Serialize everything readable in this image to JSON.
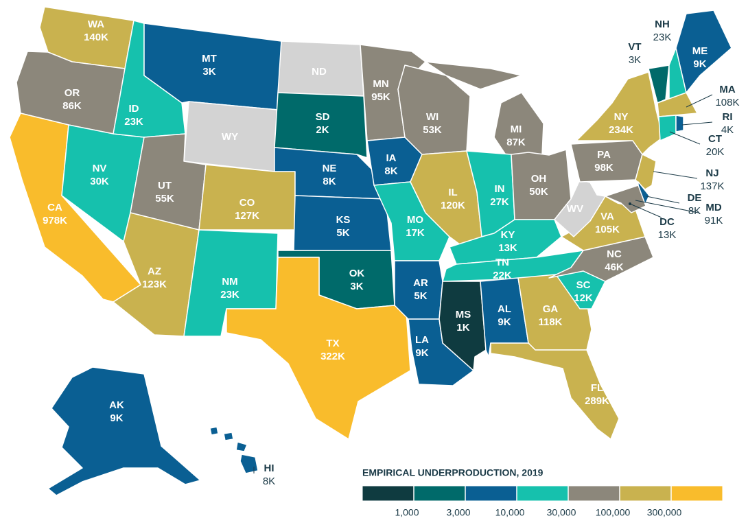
{
  "map": {
    "legend": {
      "title": "EMPIRICAL UNDERPRODUCTION, 2019",
      "colors": [
        "#0f3b40",
        "#006a6a",
        "#0a5f93",
        "#16c1ad",
        "#8c877b",
        "#c9b24f",
        "#f9bc2c"
      ],
      "ticks": [
        {
          "value": 1000,
          "label": "1,000"
        },
        {
          "value": 3000,
          "label": "3,000"
        },
        {
          "value": 10000,
          "label": "10,000"
        },
        {
          "value": 30000,
          "label": "30,000"
        },
        {
          "value": 100000,
          "label": "100,000"
        },
        {
          "value": 300000,
          "label": "300,000"
        }
      ]
    },
    "regions": [
      {
        "name": "WA",
        "value": 140000,
        "value_label": "140K",
        "color": "#c9b24f"
      },
      {
        "name": "OR",
        "value": 86000,
        "value_label": "86K",
        "color": "#8c877b"
      },
      {
        "name": "CA",
        "value": 978000,
        "value_label": "978K",
        "color": "#f9bc2c"
      },
      {
        "name": "NV",
        "value": 30000,
        "value_label": "30K",
        "color": "#16c1ad"
      },
      {
        "name": "ID",
        "value": 23000,
        "value_label": "23K",
        "color": "#16c1ad"
      },
      {
        "name": "MT",
        "value": 3000,
        "value_label": "3K",
        "color": "#0a5f93"
      },
      {
        "name": "WY",
        "color": "#d3d3d3"
      },
      {
        "name": "UT",
        "value": 55000,
        "value_label": "55K",
        "color": "#8c877b"
      },
      {
        "name": "CO",
        "value": 127000,
        "value_label": "127K",
        "color": "#c9b24f"
      },
      {
        "name": "AZ",
        "value": 123000,
        "value_label": "123K",
        "color": "#c9b24f"
      },
      {
        "name": "NM",
        "value": 23000,
        "value_label": "23K",
        "color": "#16c1ad"
      },
      {
        "name": "ND",
        "color": "#d3d3d3"
      },
      {
        "name": "SD",
        "value": 2000,
        "value_label": "2K",
        "color": "#006a6a"
      },
      {
        "name": "NE",
        "value": 8000,
        "value_label": "8K",
        "color": "#0a5f93"
      },
      {
        "name": "KS",
        "value": 5000,
        "value_label": "5K",
        "color": "#0a5f93"
      },
      {
        "name": "OK",
        "value": 3000,
        "value_label": "3K",
        "color": "#006a6a"
      },
      {
        "name": "TX",
        "value": 322000,
        "value_label": "322K",
        "color": "#f9bc2c"
      },
      {
        "name": "MN",
        "value": 95000,
        "value_label": "95K",
        "color": "#8c877b"
      },
      {
        "name": "IA",
        "value": 8000,
        "value_label": "8K",
        "color": "#0a5f93"
      },
      {
        "name": "MO",
        "value": 17000,
        "value_label": "17K",
        "color": "#16c1ad"
      },
      {
        "name": "AR",
        "value": 5000,
        "value_label": "5K",
        "color": "#0a5f93"
      },
      {
        "name": "LA",
        "value": 9000,
        "value_label": "9K",
        "color": "#0a5f93"
      },
      {
        "name": "WI",
        "value": 53000,
        "value_label": "53K",
        "color": "#8c877b"
      },
      {
        "name": "IL",
        "value": 120000,
        "value_label": "120K",
        "color": "#c9b24f"
      },
      {
        "name": "MI",
        "value": 87000,
        "value_label": "87K",
        "color": "#8c877b"
      },
      {
        "name": "IN",
        "value": 27000,
        "value_label": "27K",
        "color": "#16c1ad"
      },
      {
        "name": "OH",
        "value": 50000,
        "value_label": "50K",
        "color": "#8c877b"
      },
      {
        "name": "KY",
        "value": 13000,
        "value_label": "13K",
        "color": "#16c1ad"
      },
      {
        "name": "TN",
        "value": 22000,
        "value_label": "22K",
        "color": "#16c1ad"
      },
      {
        "name": "MS",
        "value": 1000,
        "value_label": "1K",
        "color": "#0f3b40"
      },
      {
        "name": "AL",
        "value": 9000,
        "value_label": "9K",
        "color": "#0a5f93"
      },
      {
        "name": "GA",
        "value": 118000,
        "value_label": "118K",
        "color": "#c9b24f"
      },
      {
        "name": "FL",
        "value": 289000,
        "value_label": "289K",
        "color": "#c9b24f"
      },
      {
        "name": "SC",
        "value": 12000,
        "value_label": "12K",
        "color": "#16c1ad"
      },
      {
        "name": "NC",
        "value": 46000,
        "value_label": "46K",
        "color": "#8c877b"
      },
      {
        "name": "VA",
        "value": 105000,
        "value_label": "105K",
        "color": "#c9b24f"
      },
      {
        "name": "WV",
        "color": "#d3d3d3"
      },
      {
        "name": "PA",
        "value": 98000,
        "value_label": "98K",
        "color": "#8c877b"
      },
      {
        "name": "NY",
        "value": 234000,
        "value_label": "234K",
        "color": "#c9b24f"
      },
      {
        "name": "NJ",
        "value": 137000,
        "value_label": "137K",
        "color": "#c9b24f"
      },
      {
        "name": "DE",
        "value": 8000,
        "value_label": "8K",
        "color": "#0a5f93"
      },
      {
        "name": "MD",
        "value": 91000,
        "value_label": "91K",
        "color": "#8c877b"
      },
      {
        "name": "DC",
        "value": 13000,
        "value_label": "13K"
      },
      {
        "name": "VT",
        "value": 3000,
        "value_label": "3K",
        "color": "#006a6a"
      },
      {
        "name": "NH",
        "value": 23000,
        "value_label": "23K",
        "color": "#16c1ad"
      },
      {
        "name": "ME",
        "value": 9000,
        "value_label": "9K",
        "color": "#0a5f93"
      },
      {
        "name": "MA",
        "value": 108000,
        "value_label": "108K",
        "color": "#c9b24f"
      },
      {
        "name": "CT",
        "value": 20000,
        "value_label": "20K",
        "color": "#16c1ad"
      },
      {
        "name": "RI",
        "value": 4000,
        "value_label": "4K",
        "color": "#0a5f93"
      },
      {
        "name": "AK",
        "value": 9000,
        "value_label": "9K",
        "color": "#0a5f93"
      },
      {
        "name": "HI",
        "value": 8000,
        "value_label": "8K",
        "color": "#0a5f93"
      }
    ]
  }
}
